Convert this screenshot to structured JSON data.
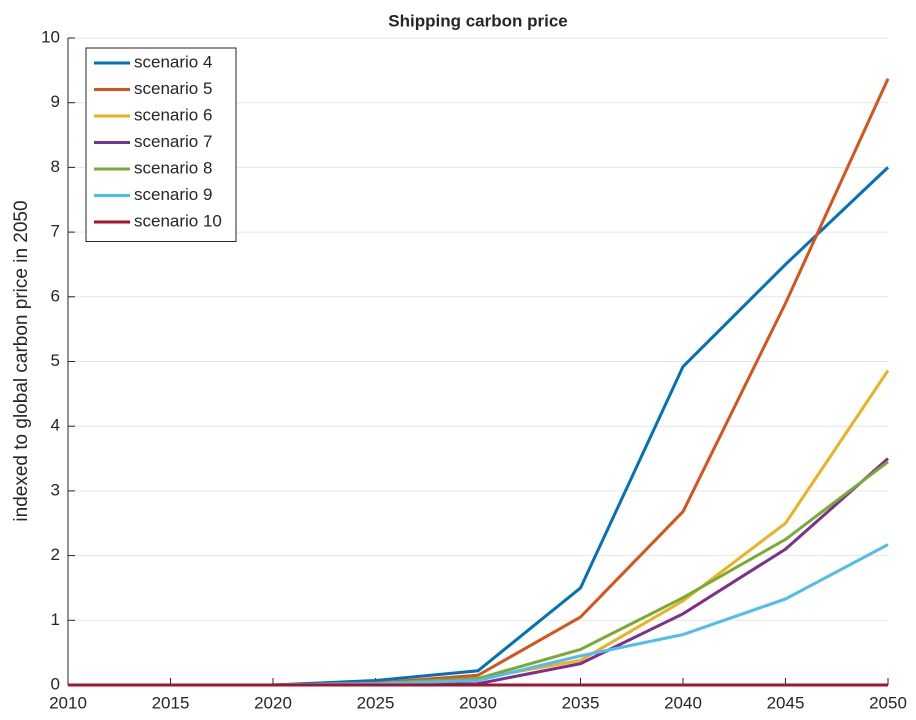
{
  "chart_data": {
    "type": "line",
    "title": "Shipping carbon price",
    "ylabel": "indexed to global carbon price in 2050",
    "x": [
      2010,
      2015,
      2020,
      2025,
      2030,
      2035,
      2040,
      2045,
      2050
    ],
    "xlim": [
      2010,
      2050
    ],
    "xticks": [
      2010,
      2015,
      2020,
      2025,
      2030,
      2035,
      2040,
      2045,
      2050
    ],
    "ylim": [
      0,
      10
    ],
    "yticks": [
      0,
      1,
      2,
      3,
      4,
      5,
      6,
      7,
      8,
      9,
      10
    ],
    "grid": true,
    "legend_position": "upper-left",
    "series": [
      {
        "name": "scenario 4",
        "color": "#0072BD",
        "values": [
          0,
          0,
          0,
          0.07,
          0.22,
          1.5,
          4.92,
          6.5,
          8.0
        ]
      },
      {
        "name": "scenario 5",
        "color": "#D95319",
        "values": [
          0,
          0,
          0,
          0.03,
          0.15,
          1.05,
          2.68,
          5.9,
          9.37
        ]
      },
      {
        "name": "scenario 6",
        "color": "#EDB120",
        "values": [
          0,
          0,
          0,
          0.02,
          0.1,
          0.38,
          1.3,
          2.5,
          4.86
        ]
      },
      {
        "name": "scenario 7",
        "color": "#7E2F8E",
        "values": [
          0,
          0,
          0,
          0,
          0.02,
          0.33,
          1.1,
          2.1,
          3.5
        ]
      },
      {
        "name": "scenario 8",
        "color": "#77AC30",
        "values": [
          0,
          0,
          0,
          0.02,
          0.1,
          0.55,
          1.35,
          2.25,
          3.45
        ]
      },
      {
        "name": "scenario 9",
        "color": "#4DBEEE",
        "values": [
          0,
          0,
          0,
          0.02,
          0.07,
          0.45,
          0.78,
          1.33,
          2.17
        ]
      },
      {
        "name": "scenario 10",
        "color": "#A2142F",
        "values": [
          0,
          0,
          0,
          0,
          0,
          0,
          0,
          0,
          0
        ]
      }
    ]
  }
}
